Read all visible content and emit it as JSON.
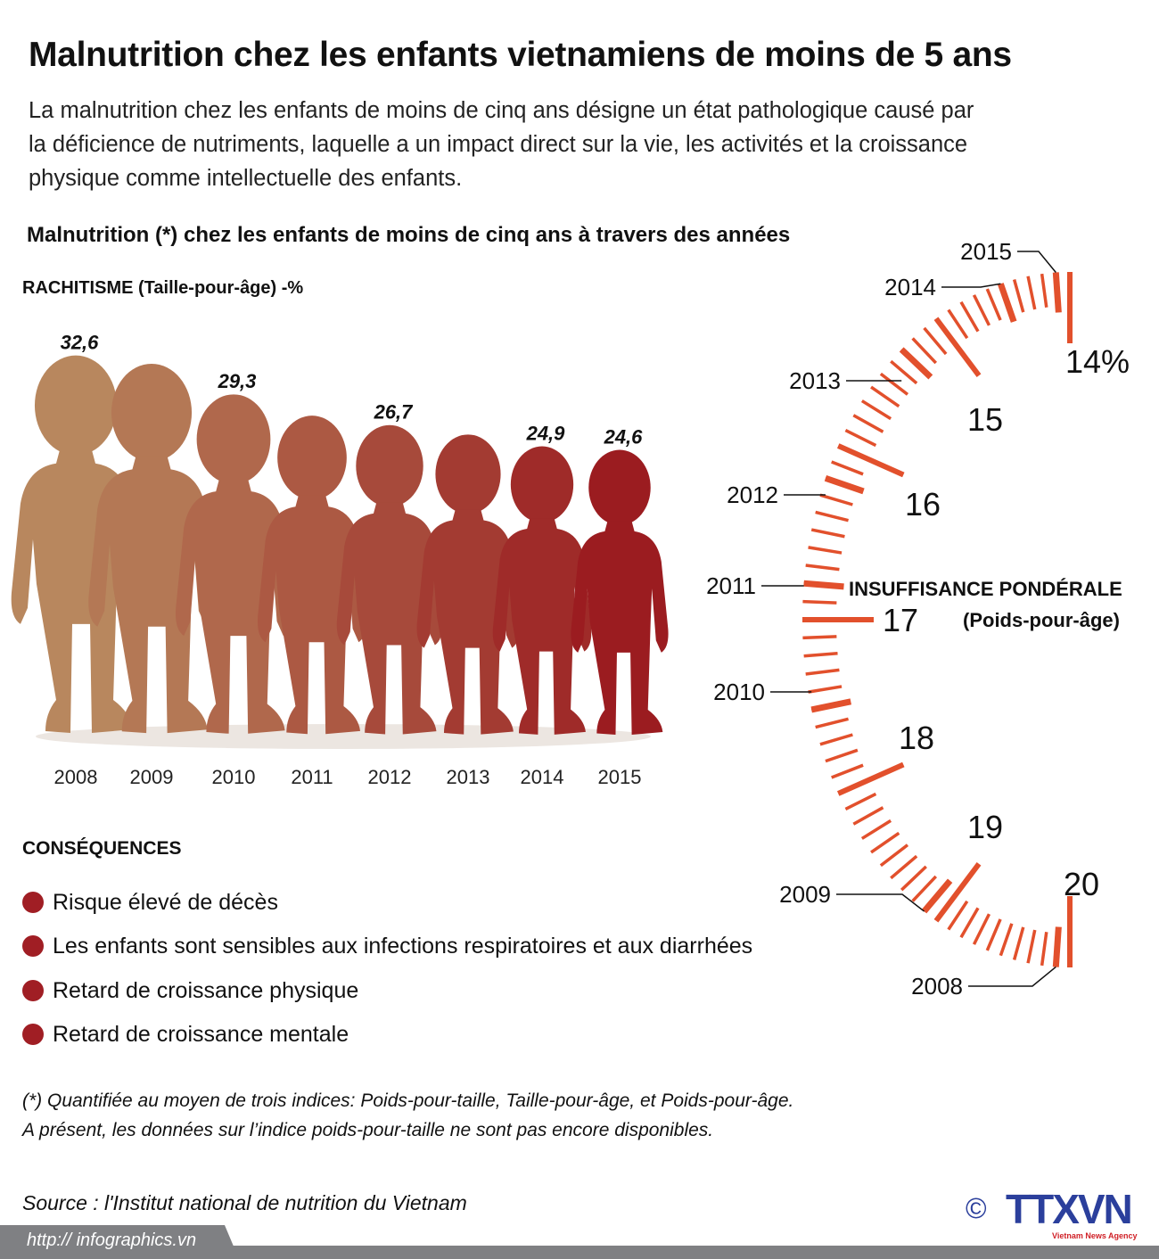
{
  "title": "Malnutrition chez les enfants vietnamiens de moins de 5 ans",
  "intro": [
    "La malnutrition chez les enfants de moins de cinq ans désigne un état pathologique causé par",
    "la déficience de nutriments, laquelle a un impact direct sur la vie, les activités et la croissance",
    "physique comme intellectuelle des enfants."
  ],
  "subtitle": "Malnutrition (*) chez les enfants de moins de cinq ans à travers des années",
  "colors": {
    "accent": "#e2502c",
    "bullet": "#a01e24",
    "figure_light": "#b8875e",
    "figure_dark": "#9b1c20",
    "footer_gray": "#7f8083",
    "logo_blue": "#2b3f9c"
  },
  "chart_data": [
    {
      "type": "bar",
      "title": "RACHITISME (Taille-pour-âge) -%",
      "categories": [
        "2008",
        "2009",
        "2010",
        "2011",
        "2012",
        "2013",
        "2014",
        "2015"
      ],
      "values": [
        32.6,
        31.9,
        29.3,
        27.5,
        26.7,
        25.9,
        24.9,
        24.6
      ],
      "data_labels": [
        "32,6",
        "",
        "29,3",
        "",
        "26,7",
        "",
        "24,9",
        "24,6"
      ],
      "marks": "child-silhouettes"
    },
    {
      "type": "gauge",
      "title": "INSUFFISANCE PONDÉRALE",
      "subtitle": "(Poids-pour-âge)",
      "scale_min": 14,
      "scale_max": 20,
      "minor_step": 0.1,
      "major_ticks": [
        "14%",
        "15",
        "16",
        "17",
        "18",
        "19",
        "20"
      ],
      "years": [
        "2008",
        "2009",
        "2010",
        "2011",
        "2012",
        "2013",
        "2014",
        "2015"
      ],
      "values": [
        19.9,
        18.9,
        17.5,
        16.8,
        16.2,
        15.3,
        14.5,
        14.1
      ]
    }
  ],
  "consequences": {
    "title": "CONSÉQUENCES",
    "items": [
      "Risque élevé de décès",
      "Les enfants sont sensibles aux infections respiratoires et aux diarrhées",
      "Retard de croissance physique",
      "Retard de croissance mentale"
    ]
  },
  "notes": [
    "(*) Quantifiée au moyen de trois indices: Poids-pour-taille, Taille-pour-âge, et Poids-pour-âge.",
    "A présent, les données sur l’indice poids-pour-taille ne sont pas encore disponibles."
  ],
  "source": "Source : l'Institut national de nutrition du Vietnam",
  "url": "http:// infographics.vn",
  "logo": {
    "copyright": "©",
    "name": "TTXVN",
    "tagline": "Vietnam News Agency"
  }
}
